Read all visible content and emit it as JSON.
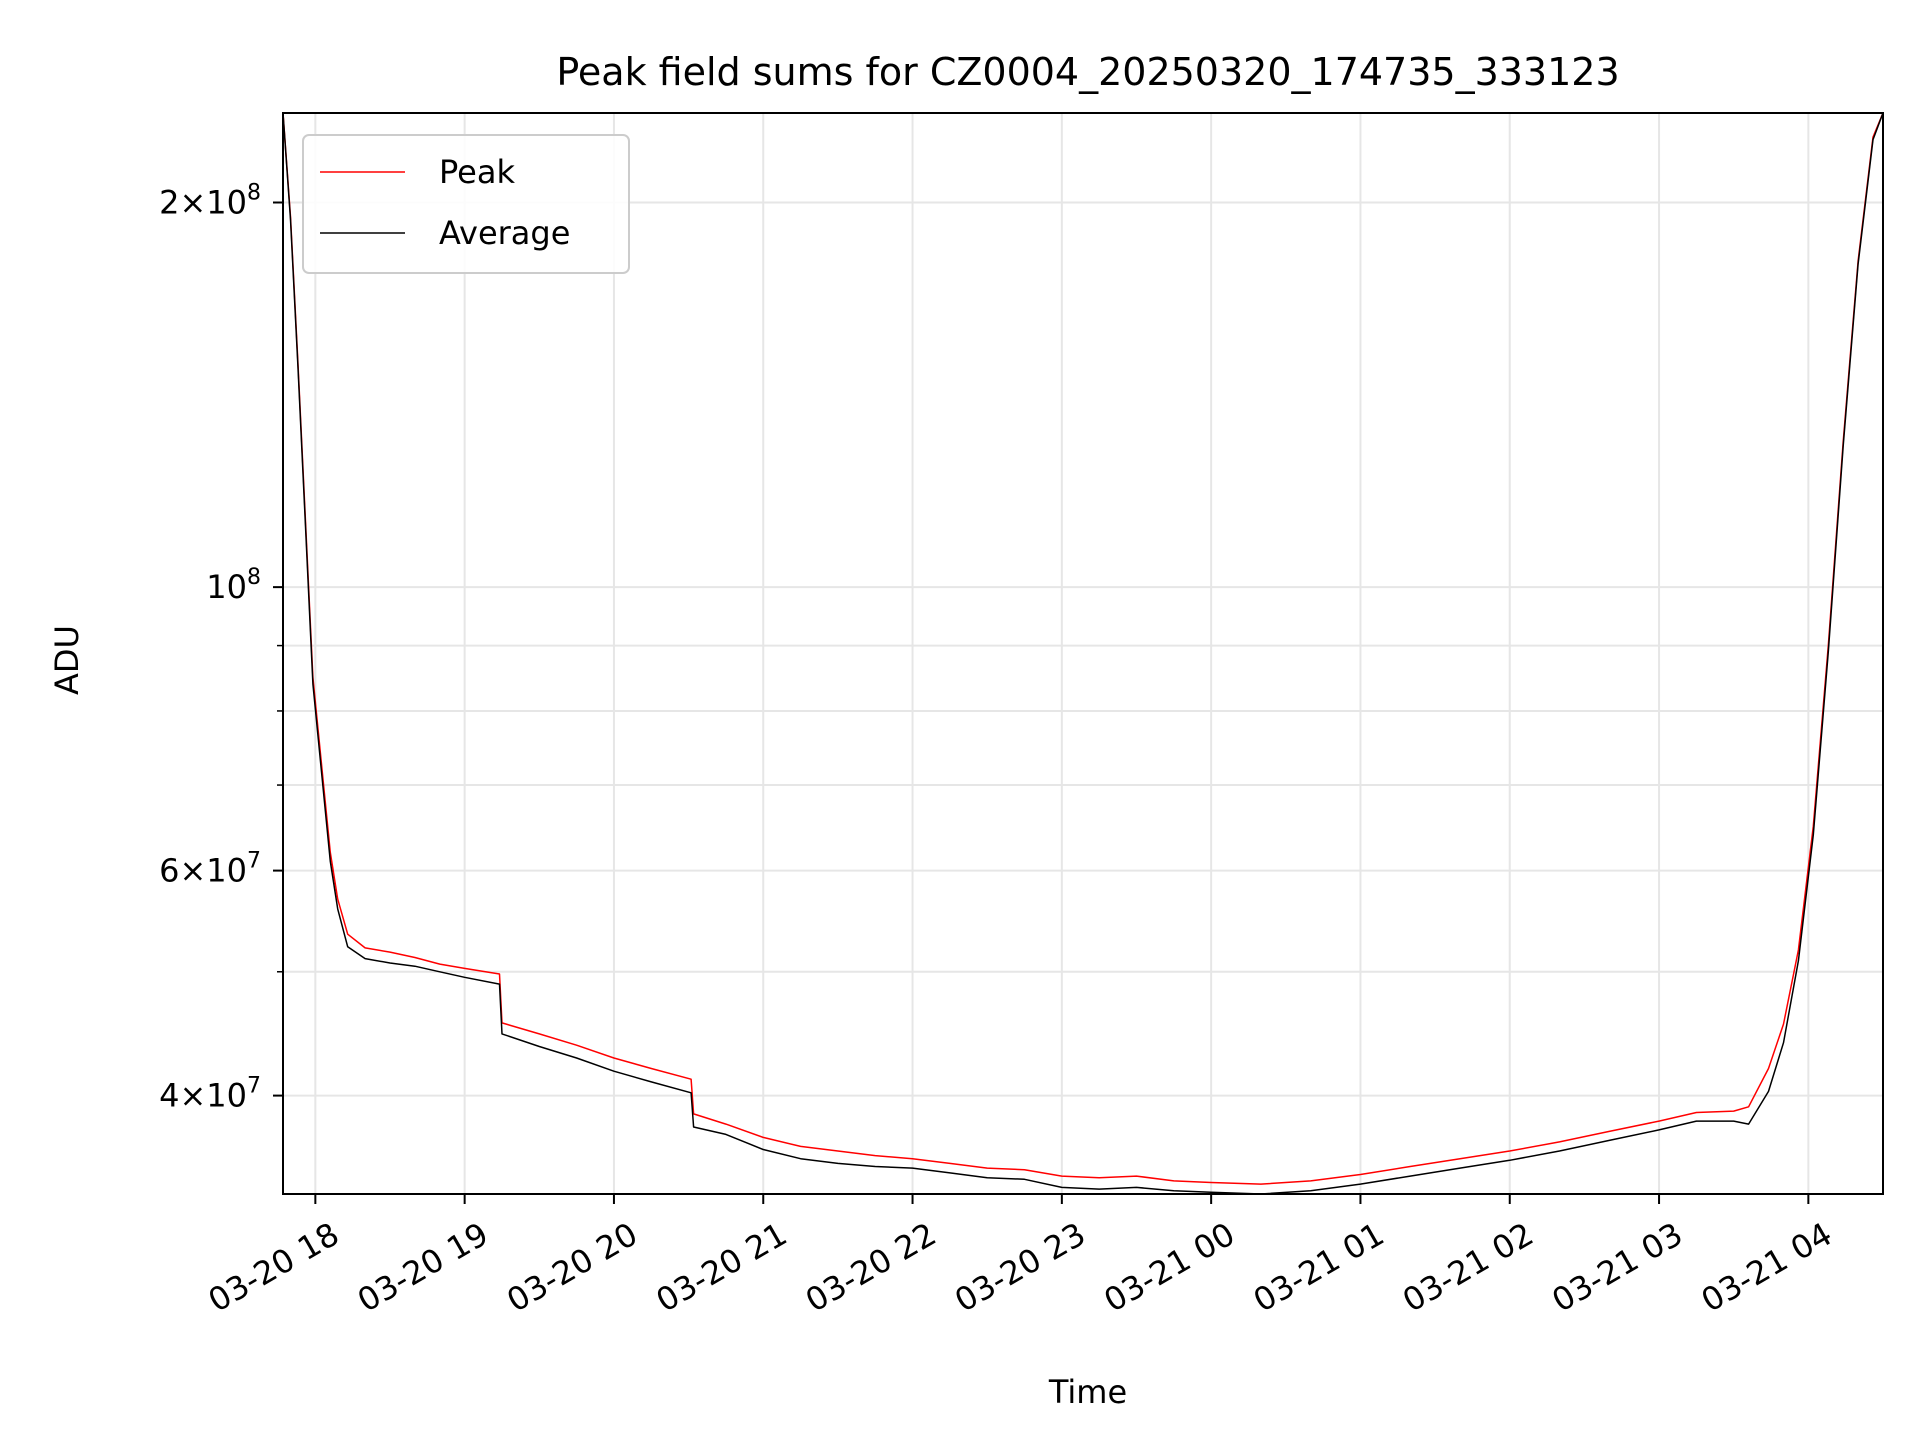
{
  "chart_data": {
    "type": "line",
    "title": "Peak field sums for CZ0004_20250320_174735_333123",
    "xlabel": "Time",
    "ylabel": "ADU",
    "yscale": "log",
    "xlim": [
      "2025-03-20 17:47",
      "2025-03-21 04:30"
    ],
    "ylim": [
      33500000,
      235000000
    ],
    "grid": true,
    "legend_position": "upper left",
    "x_ticks": [
      {
        "t": "2025-03-20 18:00",
        "label": "03-20 18"
      },
      {
        "t": "2025-03-20 19:00",
        "label": "03-20 19"
      },
      {
        "t": "2025-03-20 20:00",
        "label": "03-20 20"
      },
      {
        "t": "2025-03-20 21:00",
        "label": "03-20 21"
      },
      {
        "t": "2025-03-20 22:00",
        "label": "03-20 22"
      },
      {
        "t": "2025-03-20 23:00",
        "label": "03-20 23"
      },
      {
        "t": "2025-03-21 00:00",
        "label": "03-21 00"
      },
      {
        "t": "2025-03-21 01:00",
        "label": "03-21 01"
      },
      {
        "t": "2025-03-21 02:00",
        "label": "03-21 02"
      },
      {
        "t": "2025-03-21 03:00",
        "label": "03-21 03"
      },
      {
        "t": "2025-03-21 04:00",
        "label": "03-21 04"
      }
    ],
    "y_major_ticks": [
      {
        "value": 40000000,
        "mantissa": "4",
        "exponent": "7"
      },
      {
        "value": 60000000,
        "mantissa": "6",
        "exponent": "7"
      },
      {
        "value": 100000000,
        "mantissa": "",
        "exponent": "8"
      },
      {
        "value": 200000000,
        "mantissa": "2",
        "exponent": "8"
      }
    ],
    "y_minor_ticks": [
      50000000,
      70000000,
      80000000,
      90000000
    ],
    "series": [
      {
        "name": "Peak",
        "color": "#ff0000",
        "points": [
          [
            "2025-03-20 17:47",
            235000000
          ],
          [
            "2025-03-20 17:50",
            195000000
          ],
          [
            "2025-03-20 17:53",
            150000000
          ],
          [
            "2025-03-20 17:56",
            113000000
          ],
          [
            "2025-03-20 17:59",
            85000000
          ],
          [
            "2025-03-20 18:03",
            71000000
          ],
          [
            "2025-03-20 18:06",
            62000000
          ],
          [
            "2025-03-20 18:09",
            57000000
          ],
          [
            "2025-03-20 18:13",
            53500000
          ],
          [
            "2025-03-20 18:20",
            52200000
          ],
          [
            "2025-03-20 18:30",
            51800000
          ],
          [
            "2025-03-20 18:40",
            51300000
          ],
          [
            "2025-03-20 18:50",
            50700000
          ],
          [
            "2025-03-20 19:00",
            50300000
          ],
          [
            "2025-03-20 19:14",
            49800000
          ],
          [
            "2025-03-20 19:15",
            45600000
          ],
          [
            "2025-03-20 19:30",
            44700000
          ],
          [
            "2025-03-20 19:45",
            43800000
          ],
          [
            "2025-03-20 20:00",
            42800000
          ],
          [
            "2025-03-20 20:15",
            42000000
          ],
          [
            "2025-03-20 20:31",
            41200000
          ],
          [
            "2025-03-20 20:32",
            38700000
          ],
          [
            "2025-03-20 20:45",
            38000000
          ],
          [
            "2025-03-20 21:00",
            37100000
          ],
          [
            "2025-03-20 21:15",
            36500000
          ],
          [
            "2025-03-20 21:30",
            36200000
          ],
          [
            "2025-03-20 21:45",
            35900000
          ],
          [
            "2025-03-20 22:00",
            35700000
          ],
          [
            "2025-03-20 22:15",
            35400000
          ],
          [
            "2025-03-20 22:30",
            35100000
          ],
          [
            "2025-03-20 22:45",
            35000000
          ],
          [
            "2025-03-20 23:00",
            34600000
          ],
          [
            "2025-03-20 23:15",
            34500000
          ],
          [
            "2025-03-20 23:30",
            34600000
          ],
          [
            "2025-03-20 23:45",
            34300000
          ],
          [
            "2025-03-21 00:00",
            34200000
          ],
          [
            "2025-03-21 00:20",
            34100000
          ],
          [
            "2025-03-21 00:40",
            34300000
          ],
          [
            "2025-03-21 01:00",
            34700000
          ],
          [
            "2025-03-21 01:20",
            35200000
          ],
          [
            "2025-03-21 01:40",
            35700000
          ],
          [
            "2025-03-21 02:00",
            36200000
          ],
          [
            "2025-03-21 02:20",
            36800000
          ],
          [
            "2025-03-21 02:40",
            37500000
          ],
          [
            "2025-03-21 03:00",
            38200000
          ],
          [
            "2025-03-21 03:15",
            38800000
          ],
          [
            "2025-03-21 03:30",
            38900000
          ],
          [
            "2025-03-21 03:36",
            39200000
          ],
          [
            "2025-03-21 03:44",
            42000000
          ],
          [
            "2025-03-21 03:50",
            45500000
          ],
          [
            "2025-03-21 03:56",
            52000000
          ],
          [
            "2025-03-21 04:02",
            65000000
          ],
          [
            "2025-03-21 04:08",
            90000000
          ],
          [
            "2025-03-21 04:14",
            130000000
          ],
          [
            "2025-03-21 04:20",
            180000000
          ],
          [
            "2025-03-21 04:26",
            225000000
          ],
          [
            "2025-03-21 04:30",
            235000000
          ]
        ]
      },
      {
        "name": "Average",
        "color": "#000000",
        "points": [
          [
            "2025-03-20 17:47",
            235000000
          ],
          [
            "2025-03-20 17:50",
            194000000
          ],
          [
            "2025-03-20 17:53",
            149000000
          ],
          [
            "2025-03-20 17:56",
            112000000
          ],
          [
            "2025-03-20 17:59",
            84000000
          ],
          [
            "2025-03-20 18:03",
            70000000
          ],
          [
            "2025-03-20 18:06",
            61000000
          ],
          [
            "2025-03-20 18:09",
            56000000
          ],
          [
            "2025-03-20 18:13",
            52300000
          ],
          [
            "2025-03-20 18:20",
            51200000
          ],
          [
            "2025-03-20 18:30",
            50800000
          ],
          [
            "2025-03-20 18:40",
            50500000
          ],
          [
            "2025-03-20 18:50",
            50000000
          ],
          [
            "2025-03-20 19:00",
            49500000
          ],
          [
            "2025-03-20 19:14",
            48900000
          ],
          [
            "2025-03-20 19:15",
            44700000
          ],
          [
            "2025-03-20 19:30",
            43700000
          ],
          [
            "2025-03-20 19:45",
            42800000
          ],
          [
            "2025-03-20 20:00",
            41800000
          ],
          [
            "2025-03-20 20:15",
            41000000
          ],
          [
            "2025-03-20 20:31",
            40200000
          ],
          [
            "2025-03-20 20:32",
            37800000
          ],
          [
            "2025-03-20 20:45",
            37300000
          ],
          [
            "2025-03-20 21:00",
            36300000
          ],
          [
            "2025-03-20 21:15",
            35700000
          ],
          [
            "2025-03-20 21:30",
            35400000
          ],
          [
            "2025-03-20 21:45",
            35200000
          ],
          [
            "2025-03-20 22:00",
            35100000
          ],
          [
            "2025-03-20 22:15",
            34800000
          ],
          [
            "2025-03-20 22:30",
            34500000
          ],
          [
            "2025-03-20 22:45",
            34400000
          ],
          [
            "2025-03-20 23:00",
            33900000
          ],
          [
            "2025-03-20 23:15",
            33800000
          ],
          [
            "2025-03-20 23:30",
            33900000
          ],
          [
            "2025-03-20 23:45",
            33700000
          ],
          [
            "2025-03-21 00:00",
            33600000
          ],
          [
            "2025-03-21 00:20",
            33500000
          ],
          [
            "2025-03-21 00:40",
            33700000
          ],
          [
            "2025-03-21 01:00",
            34100000
          ],
          [
            "2025-03-21 01:20",
            34600000
          ],
          [
            "2025-03-21 01:40",
            35100000
          ],
          [
            "2025-03-21 02:00",
            35600000
          ],
          [
            "2025-03-21 02:20",
            36200000
          ],
          [
            "2025-03-21 02:40",
            36900000
          ],
          [
            "2025-03-21 03:00",
            37600000
          ],
          [
            "2025-03-21 03:15",
            38200000
          ],
          [
            "2025-03-21 03:30",
            38200000
          ],
          [
            "2025-03-21 03:36",
            38000000
          ],
          [
            "2025-03-21 03:44",
            40300000
          ],
          [
            "2025-03-21 03:50",
            44000000
          ],
          [
            "2025-03-21 03:56",
            51000000
          ],
          [
            "2025-03-21 04:02",
            64000000
          ],
          [
            "2025-03-21 04:08",
            89000000
          ],
          [
            "2025-03-21 04:14",
            129000000
          ],
          [
            "2025-03-21 04:20",
            179000000
          ],
          [
            "2025-03-21 04:26",
            224000000
          ],
          [
            "2025-03-21 04:30",
            235000000
          ]
        ]
      }
    ]
  }
}
